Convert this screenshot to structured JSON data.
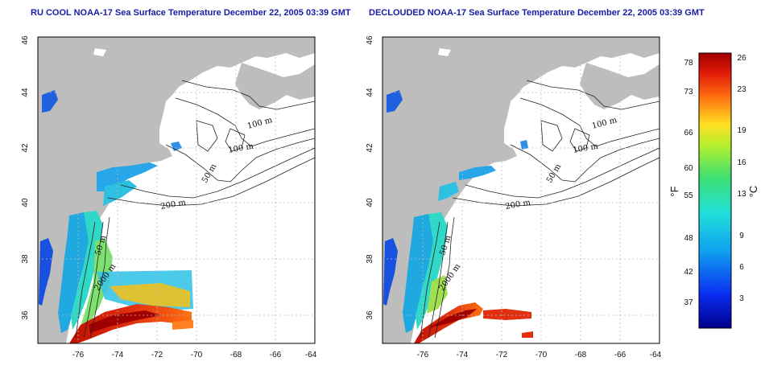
{
  "panels": [
    {
      "title": "RU COOL NOAA-17 Sea Surface Temperature December 22, 2005 03:39 GMT",
      "contour_labels": [
        "100 m",
        "100 m",
        "50 m",
        "200 m",
        "50 m",
        "2000 m"
      ]
    },
    {
      "title": "DECLOUDED NOAA-17 Sea Surface Temperature December 22, 2005 03:39 GMT",
      "contour_labels": [
        "100 m",
        "100 m",
        "50 m",
        "200 m",
        "50 m",
        "2000 m"
      ]
    }
  ],
  "axes": {
    "lon_ticks": [
      "-76",
      "-74",
      "-72",
      "-70",
      "-68",
      "-66",
      "-64"
    ],
    "lat_ticks": [
      "36",
      "38",
      "40",
      "42",
      "44",
      "46"
    ]
  },
  "colorbar": {
    "fahrenheit_label": "°F",
    "celsius_label": "°C",
    "fahrenheit_ticks": [
      "78",
      "73",
      "66",
      "60",
      "55",
      "48",
      "42",
      "37"
    ],
    "celsius_ticks": [
      "26",
      "23",
      "19",
      "16",
      "13",
      "9",
      "6",
      "3"
    ]
  },
  "colors": {
    "land": "#bdbdbd",
    "title": "#1a1aa6",
    "grid": "#bbbbbb"
  }
}
